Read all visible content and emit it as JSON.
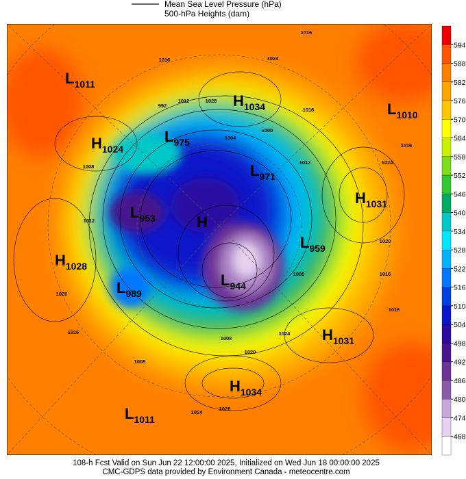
{
  "header": {
    "legend": [
      {
        "label": "Mean Sea Level Pressure (hPa)"
      },
      {
        "label": "500-hPa Heights (dam)"
      }
    ]
  },
  "colorbar": {
    "ticks": [
      594,
      588,
      582,
      576,
      570,
      564,
      558,
      552,
      546,
      540,
      534,
      528,
      522,
      516,
      510,
      504,
      498,
      492,
      486,
      480,
      474,
      468
    ],
    "colors": [
      "#ee0000",
      "#ff5500",
      "#ff7f00",
      "#ffa500",
      "#ffc800",
      "#ffff00",
      "#c8f000",
      "#7ddc1e",
      "#32c832",
      "#00aa64",
      "#00c8c8",
      "#00e6ff",
      "#00b4ff",
      "#0078ff",
      "#0040e0",
      "#0a14c8",
      "#2a0aa0",
      "#46148c",
      "#6e3296",
      "#8c5aaa",
      "#c8aadc",
      "#e6d2f0",
      "#ffffff"
    ]
  },
  "centers": [
    {
      "kind": "L",
      "value": "1011"
    },
    {
      "kind": "H",
      "value": "1034"
    },
    {
      "kind": "L",
      "value": "1010"
    },
    {
      "kind": "H",
      "value": "1024"
    },
    {
      "kind": "L",
      "value": "975"
    },
    {
      "kind": "L",
      "value": "971"
    },
    {
      "kind": "H",
      "value": "1031"
    },
    {
      "kind": "L",
      "value": "953"
    },
    {
      "kind": "H"
    },
    {
      "kind": "L",
      "value": "959"
    },
    {
      "kind": "H",
      "value": "1028"
    },
    {
      "kind": "L",
      "value": "989"
    },
    {
      "kind": "L",
      "value": "944"
    },
    {
      "kind": "H",
      "value": "1031"
    },
    {
      "kind": "H",
      "value": "1034"
    },
    {
      "kind": "L",
      "value": "1011"
    }
  ],
  "isobar_labels": [
    "1016",
    "1024",
    "1016",
    "992",
    "1012",
    "1028",
    "1016",
    "1000",
    "1004",
    "1012",
    "1008",
    "1024",
    "1016",
    "1012",
    "1020",
    "1016",
    "1008",
    "1020",
    "1016",
    "1024",
    "1008",
    "1020",
    "1016",
    "1028",
    "1024",
    "1008"
  ],
  "footer": {
    "lines": [
      "108-h Fcst Valid on Sun Jun 22 12:00:00 2025, Initialized on Wed Jun 18 00:00:00 2025",
      "CMC-GDPS data provided by Environment Canada - meteocentre.com"
    ]
  }
}
